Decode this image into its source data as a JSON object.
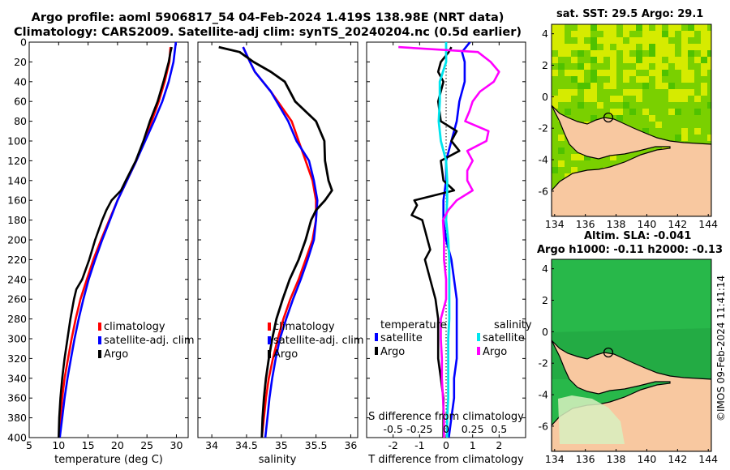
{
  "titles": {
    "line1": "Argo profile: aoml 5906817_54 04-Feb-2024 1.419S 138.98E (NRT data)",
    "line2": "Climatology: CARS2009. Satellite-adj clim: synTS_20240204.nc (0.5d earlier)"
  },
  "colors": {
    "climatology": "#ff0000",
    "satellite": "#0000ff",
    "argo": "#000000",
    "salinity_satellite": "#00e5ee",
    "salinity_argo": "#ff00ff",
    "land": "#f8c8a0",
    "sst_high": "#e6f000",
    "sst_mid": "#7ad000",
    "sla_green": "#28b84a",
    "frame": "#000000"
  },
  "chart_data": [
    {
      "type": "line",
      "name": "temperature-profile",
      "xlabel": "temperature (deg C)",
      "ylabel": "depth (dbar)",
      "xlim": [
        5,
        32
      ],
      "ylim": [
        0,
        400
      ],
      "xticks": [
        5,
        10,
        15,
        20,
        25,
        30
      ],
      "yticks": [
        0,
        20,
        40,
        60,
        80,
        100,
        120,
        140,
        160,
        180,
        200,
        220,
        240,
        260,
        280,
        300,
        320,
        340,
        360,
        380,
        400
      ],
      "legend": [
        "climatology",
        "satellite-adj. clim",
        "Argo"
      ],
      "legend_position": "lower-right",
      "series": [
        {
          "name": "climatology",
          "depth": [
            5,
            20,
            40,
            60,
            80,
            100,
            120,
            140,
            160,
            180,
            200,
            220,
            240,
            260,
            280,
            300,
            320,
            340,
            360,
            380,
            400
          ],
          "values": [
            29.0,
            28.8,
            28.0,
            27.0,
            25.8,
            24.6,
            23.2,
            21.6,
            20.0,
            18.6,
            17.2,
            15.9,
            14.8,
            13.7,
            12.9,
            12.2,
            11.6,
            11.0,
            10.6,
            10.3,
            10.1
          ]
        },
        {
          "name": "satellite-adj. clim",
          "depth": [
            0,
            20,
            40,
            60,
            80,
            100,
            120,
            140,
            160,
            180,
            200,
            220,
            240,
            260,
            280,
            300,
            320,
            340,
            360,
            380,
            400
          ],
          "values": [
            29.9,
            29.5,
            28.7,
            27.6,
            26.2,
            24.7,
            23.2,
            21.6,
            20.0,
            18.7,
            17.4,
            16.2,
            15.1,
            14.2,
            13.4,
            12.7,
            12.1,
            11.5,
            11.0,
            10.6,
            10.2
          ]
        },
        {
          "name": "Argo",
          "depth": [
            5,
            10,
            20,
            40,
            60,
            80,
            100,
            120,
            140,
            150,
            160,
            170,
            180,
            200,
            220,
            240,
            250,
            260,
            280,
            300,
            320,
            340,
            360,
            380,
            400
          ],
          "values": [
            29.2,
            29.0,
            28.7,
            27.8,
            26.8,
            25.5,
            24.4,
            23.1,
            21.4,
            20.6,
            19.0,
            18.1,
            17.4,
            16.2,
            15.2,
            14.0,
            13.0,
            12.6,
            12.0,
            11.5,
            11.0,
            10.6,
            10.3,
            10.1,
            10.0
          ]
        }
      ]
    },
    {
      "type": "line",
      "name": "salinity-profile",
      "xlabel": "salinity",
      "xlim": [
        33.8,
        36.1
      ],
      "ylim": [
        0,
        400
      ],
      "xticks": [
        34,
        34.5,
        35,
        35.5,
        36
      ],
      "legend": [
        "climatology",
        "satellite-adj. clim",
        "Argo"
      ],
      "legend_position": "lower-right",
      "series": [
        {
          "name": "climatology",
          "depth": [
            5,
            20,
            30,
            50,
            80,
            100,
            120,
            140,
            160,
            180,
            200,
            220,
            240,
            260,
            280,
            300,
            320,
            340,
            360,
            380,
            400
          ],
          "values": [
            34.45,
            34.55,
            34.62,
            34.85,
            35.15,
            35.25,
            35.35,
            35.45,
            35.5,
            35.5,
            35.45,
            35.35,
            35.25,
            35.13,
            35.03,
            34.95,
            34.88,
            34.82,
            34.78,
            34.75,
            34.72
          ]
        },
        {
          "name": "satellite-adj. clim",
          "depth": [
            5,
            20,
            30,
            50,
            80,
            100,
            120,
            140,
            160,
            180,
            200,
            220,
            240,
            260,
            280,
            300,
            320,
            340,
            360,
            380,
            400
          ],
          "values": [
            34.45,
            34.55,
            34.62,
            34.85,
            35.1,
            35.22,
            35.4,
            35.47,
            35.52,
            35.5,
            35.47,
            35.38,
            35.28,
            35.17,
            35.07,
            34.98,
            34.92,
            34.87,
            34.83,
            34.8,
            34.77
          ]
        },
        {
          "name": "Argo",
          "depth": [
            5,
            10,
            20,
            30,
            40,
            60,
            80,
            100,
            120,
            140,
            150,
            160,
            170,
            180,
            200,
            220,
            240,
            260,
            280,
            300,
            320,
            340,
            360,
            380,
            400
          ],
          "values": [
            34.1,
            34.4,
            34.6,
            34.85,
            35.05,
            35.2,
            35.5,
            35.62,
            35.63,
            35.68,
            35.73,
            35.63,
            35.5,
            35.43,
            35.35,
            35.25,
            35.12,
            35.02,
            34.93,
            34.87,
            34.82,
            34.78,
            34.75,
            34.73,
            34.72
          ]
        }
      ]
    },
    {
      "type": "line",
      "name": "difference-profile",
      "xlabel": "T difference from climatology",
      "xlabel2": "S difference from climatology",
      "xlim": [
        -3,
        3
      ],
      "ylim": [
        0,
        400
      ],
      "xticks_T": [
        -2,
        -1,
        0,
        1,
        2
      ],
      "xticks_S": [
        "-0.5",
        "-0.25",
        "0",
        "0.25",
        "0.5"
      ],
      "legend_temperature": {
        "heading": "temperature",
        "items": [
          "satellite",
          "Argo"
        ]
      },
      "legend_salinity": {
        "heading": "salinity",
        "items": [
          "satellite",
          "Argo"
        ]
      },
      "series": [
        {
          "name": "temperature satellite",
          "depth": [
            0,
            10,
            20,
            40,
            60,
            80,
            100,
            120,
            140,
            160,
            180,
            200,
            220,
            240,
            260,
            280,
            300,
            320,
            340,
            360,
            380,
            400
          ],
          "values": [
            0.9,
            0.6,
            0.7,
            0.7,
            0.5,
            0.4,
            0.2,
            0.0,
            0.0,
            -0.1,
            -0.1,
            0.0,
            0.2,
            0.3,
            0.4,
            0.4,
            0.4,
            0.4,
            0.3,
            0.3,
            0.2,
            0.1
          ]
        },
        {
          "name": "temperature Argo",
          "depth": [
            5,
            10,
            20,
            30,
            40,
            60,
            80,
            90,
            100,
            110,
            120,
            140,
            150,
            160,
            165,
            175,
            180,
            190,
            200,
            210,
            220,
            240,
            260,
            280,
            300,
            320,
            340,
            360,
            380,
            400
          ],
          "values": [
            0.2,
            0.1,
            -0.2,
            -0.3,
            -0.1,
            -0.3,
            -0.2,
            0.4,
            0.2,
            0.5,
            -0.2,
            -0.1,
            0.3,
            -1.2,
            -1.1,
            -1.3,
            -0.9,
            -0.8,
            -0.7,
            -0.6,
            -0.8,
            -0.6,
            -0.4,
            -0.3,
            -0.3,
            -0.3,
            -0.2,
            -0.1,
            -0.1,
            -0.1
          ]
        },
        {
          "name": "salinity satellite",
          "depth": [
            0,
            10,
            20,
            40,
            60,
            80,
            100,
            120,
            140,
            160,
            180,
            200,
            220,
            240,
            260,
            280,
            300,
            320,
            340,
            360,
            380,
            400
          ],
          "values": [
            0.0,
            0.0,
            0.0,
            -0.06,
            -0.06,
            -0.07,
            -0.05,
            0.0,
            0.01,
            0.01,
            0.0,
            0.02,
            0.03,
            0.03,
            0.03,
            0.03,
            0.02,
            0.02,
            0.02,
            0.02,
            0.01,
            0.01
          ]
        },
        {
          "name": "salinity Argo",
          "depth": [
            5,
            10,
            20,
            30,
            40,
            50,
            60,
            70,
            80,
            90,
            100,
            110,
            120,
            130,
            140,
            150,
            160,
            170,
            180,
            200,
            220,
            240,
            260,
            280,
            300,
            320,
            340,
            360,
            380,
            400
          ],
          "values": [
            -0.45,
            0.3,
            0.42,
            0.5,
            0.45,
            0.32,
            0.25,
            0.22,
            0.18,
            0.4,
            0.38,
            0.2,
            0.25,
            0.2,
            0.2,
            0.25,
            0.1,
            0.02,
            -0.03,
            -0.02,
            -0.02,
            0.0,
            0.0,
            -0.05,
            -0.05,
            -0.04,
            -0.04,
            -0.03,
            -0.02,
            -0.02
          ]
        }
      ]
    }
  ],
  "maps": {
    "sst": {
      "title": "sat. SST: 29.5 Argo: 29.1",
      "yticks": [
        "4",
        "2",
        "0",
        "-2",
        "-4",
        "-6"
      ],
      "xticks": [
        "134",
        "136",
        "138",
        "140",
        "142",
        "144"
      ]
    },
    "sla": {
      "title1": "Altim. SLA: -0.041",
      "title2": "Argo h1000: -0.11 h2000: -0.13",
      "yticks": [
        "4",
        "2",
        "0",
        "-2",
        "-4",
        "-6"
      ],
      "xticks": [
        "134",
        "136",
        "138",
        "140",
        "142",
        "144"
      ]
    }
  },
  "stamp": "©IMOS 09-Feb-2024 11:41:14"
}
